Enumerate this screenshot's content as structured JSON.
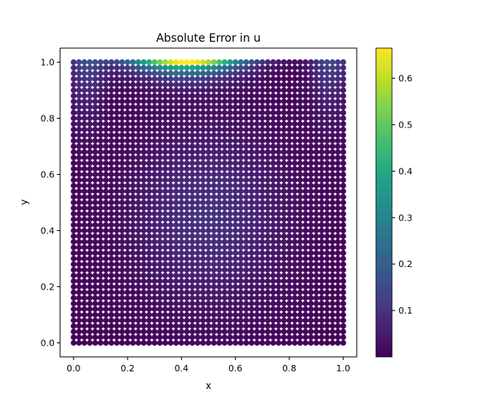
{
  "chart_data": {
    "type": "scatter",
    "title": "Absolute Error in u",
    "xlabel": "x",
    "ylabel": "y",
    "xlim": [
      -0.05,
      1.05
    ],
    "ylim": [
      -0.05,
      1.05
    ],
    "xticks": [
      "0.0",
      "0.2",
      "0.4",
      "0.6",
      "0.8",
      "1.0"
    ],
    "xtick_values": [
      0.0,
      0.2,
      0.4,
      0.6,
      0.8,
      1.0
    ],
    "yticks": [
      "0.0",
      "0.2",
      "0.4",
      "0.6",
      "0.8",
      "1.0"
    ],
    "ytick_values": [
      0.0,
      0.2,
      0.4,
      0.6,
      0.8,
      1.0
    ],
    "grid": false,
    "colormap": "viridis",
    "colorbar": {
      "range": [
        0.0,
        0.665
      ],
      "ticks": [
        "0.1",
        "0.2",
        "0.3",
        "0.4",
        "0.5",
        "0.6"
      ],
      "tick_values": [
        0.1,
        0.2,
        0.3,
        0.4,
        0.5,
        0.6
      ]
    },
    "points": {
      "x_range": [
        0.0,
        1.0
      ],
      "y_range": [
        0.0,
        1.0
      ],
      "x_count": 51,
      "y_count": 51
    },
    "color_description": "error near 0 over most of domain; peak ~0.66 along top edge y=1 around x=0.3-0.5; slight increase near top corners"
  }
}
